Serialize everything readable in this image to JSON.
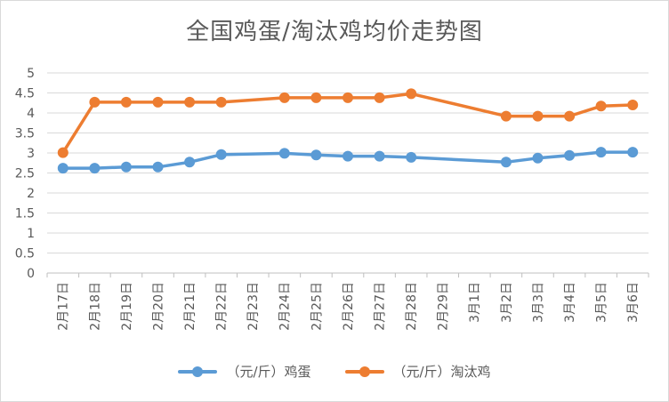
{
  "chart_data": {
    "type": "line",
    "title": "全国鸡蛋/淘汰鸡均价走势图",
    "xlabel": "",
    "ylabel": "",
    "ylim": [
      0,
      5
    ],
    "yticks": [
      "0",
      "0.5",
      "1",
      "1.5",
      "2",
      "2.5",
      "3",
      "3.5",
      "4",
      "4.5",
      "5"
    ],
    "grid": true,
    "legend_position": "bottom",
    "categories": [
      "2月17日",
      "2月18日",
      "2月19日",
      "2月20日",
      "2月21日",
      "2月22日",
      "2月23日",
      "2月24日",
      "2月25日",
      "2月26日",
      "2月27日",
      "2月28日",
      "2月29日",
      "3月1日",
      "3月2日",
      "3月3日",
      "3月4日",
      "3月5日",
      "3月6日"
    ],
    "series": [
      {
        "name": "（元/斤）鸡蛋",
        "color": "#5b9bd5",
        "values": [
          2.62,
          2.62,
          2.65,
          2.65,
          2.77,
          2.96,
          null,
          2.99,
          2.95,
          2.92,
          2.92,
          2.89,
          null,
          null,
          2.77,
          2.87,
          2.94,
          3.02,
          3.02
        ]
      },
      {
        "name": "（元/斤）淘汰鸡",
        "color": "#ed7d31",
        "values": [
          3.01,
          4.27,
          4.27,
          4.27,
          4.27,
          4.27,
          null,
          4.38,
          4.38,
          4.38,
          4.38,
          4.48,
          null,
          null,
          3.92,
          3.92,
          3.92,
          4.17,
          4.2
        ]
      }
    ]
  }
}
